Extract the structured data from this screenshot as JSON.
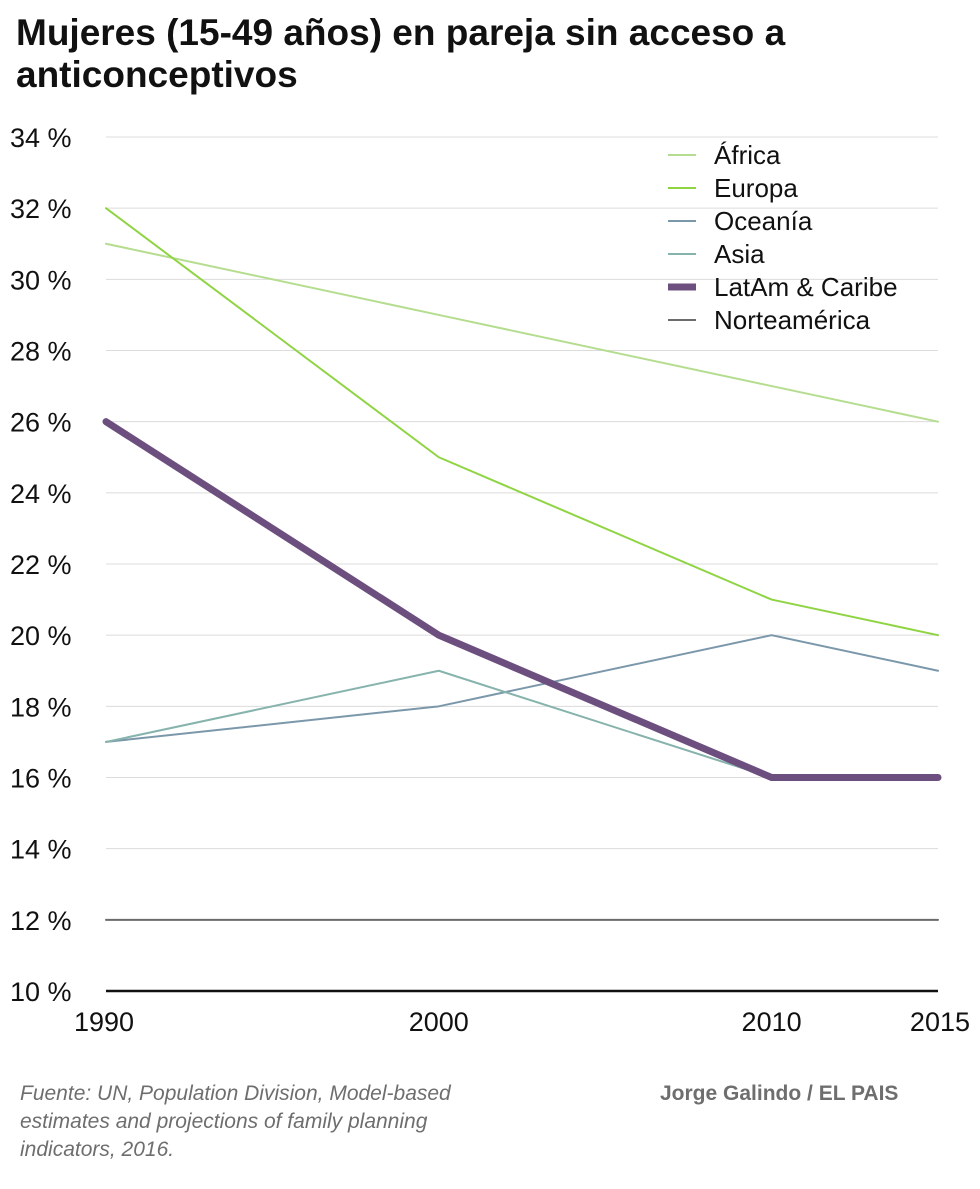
{
  "chart_data": {
    "type": "line",
    "title": "Mujeres (15-49 años) en pareja sin acceso a anticonceptivos",
    "x": [
      1990,
      2000,
      2010,
      2015
    ],
    "x_tick_labels": [
      "1990",
      "2000",
      "2010",
      "2015"
    ],
    "ylim": [
      10,
      34
    ],
    "y_ticks": [
      10,
      12,
      14,
      16,
      18,
      20,
      22,
      24,
      26,
      28,
      30,
      32,
      34
    ],
    "y_tick_labels": [
      "10 %",
      "12 %",
      "14 %",
      "16 %",
      "18 %",
      "20 %",
      "22 %",
      "24 %",
      "26 %",
      "28 %",
      "30 %",
      "32 %",
      "34 %"
    ],
    "xlabel": "",
    "ylabel": "",
    "grid": true,
    "legend_position": "top-right",
    "series": [
      {
        "name": "África",
        "values": [
          31,
          29,
          27,
          26
        ],
        "color": "#b5dd8f",
        "weight": "thin"
      },
      {
        "name": "Europa",
        "values": [
          32,
          25,
          21,
          20
        ],
        "color": "#8fd443",
        "weight": "thin"
      },
      {
        "name": "Oceanía",
        "values": [
          17,
          18,
          20,
          19
        ],
        "color": "#7b98ab",
        "weight": "thin"
      },
      {
        "name": "Asia",
        "values": [
          17,
          19,
          16,
          16
        ],
        "color": "#86b3ac",
        "weight": "thin"
      },
      {
        "name": "LatAm & Caribe",
        "values": [
          26,
          20,
          16,
          16
        ],
        "color": "#6c4f7e",
        "weight": "thick"
      },
      {
        "name": "Norteamérica",
        "values": [
          12,
          12,
          12,
          12
        ],
        "color": "#6b6b6b",
        "weight": "thin"
      }
    ],
    "source": "Fuente: UN, Population Division, Model-based estimates and projections of family planning indicators, 2016.",
    "author": "Jorge Galindo / EL PAIS"
  }
}
